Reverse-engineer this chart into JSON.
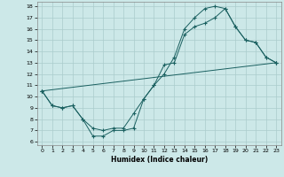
{
  "xlabel": "Humidex (Indice chaleur)",
  "bg_color": "#cce8e8",
  "grid_color": "#aacccc",
  "line_color": "#1a6060",
  "xlim": [
    -0.5,
    23.5
  ],
  "ylim": [
    5.7,
    18.4
  ],
  "yticks": [
    6,
    7,
    8,
    9,
    10,
    11,
    12,
    13,
    14,
    15,
    16,
    17,
    18
  ],
  "xticks": [
    0,
    1,
    2,
    3,
    4,
    5,
    6,
    7,
    8,
    9,
    10,
    11,
    12,
    13,
    14,
    15,
    16,
    17,
    18,
    19,
    20,
    21,
    22,
    23
  ],
  "line1_x": [
    0,
    1,
    2,
    3,
    4,
    5,
    6,
    7,
    8,
    9,
    10,
    11,
    12,
    13,
    14,
    15,
    16,
    17,
    18,
    19,
    20,
    21,
    22,
    23
  ],
  "line1_y": [
    10.5,
    9.2,
    9.0,
    9.2,
    8.0,
    7.2,
    7.0,
    7.2,
    7.2,
    8.5,
    9.8,
    11.0,
    12.8,
    13.0,
    15.5,
    16.2,
    16.5,
    17.0,
    17.8,
    16.2,
    15.0,
    14.8,
    13.5,
    13.0
  ],
  "line2_x": [
    0,
    1,
    2,
    3,
    4,
    5,
    6,
    7,
    8,
    9,
    10,
    11,
    12,
    13,
    14,
    15,
    16,
    17,
    18,
    19,
    20,
    21,
    22,
    23
  ],
  "line2_y": [
    10.5,
    9.2,
    9.0,
    9.2,
    8.0,
    6.5,
    6.5,
    7.0,
    7.0,
    7.2,
    9.8,
    11.0,
    12.0,
    13.5,
    16.0,
    17.0,
    17.8,
    18.0,
    17.8,
    16.2,
    15.0,
    14.8,
    13.5,
    13.0
  ],
  "line3_x": [
    0,
    23
  ],
  "line3_y": [
    10.5,
    13.0
  ]
}
